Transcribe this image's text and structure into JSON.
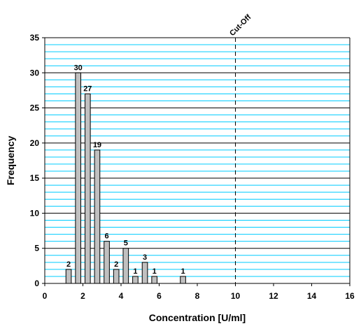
{
  "chart_data": {
    "type": "bar",
    "title": "",
    "xlabel": "Concentration [U/ml]",
    "ylabel": "Frequency",
    "xlim": [
      0,
      16
    ],
    "ylim": [
      0,
      35
    ],
    "x_ticks": [
      0,
      2,
      4,
      6,
      8,
      10,
      12,
      14,
      16
    ],
    "y_ticks": [
      0,
      5,
      10,
      15,
      20,
      25,
      30,
      35
    ],
    "grid": true,
    "minor_grid_step": 1,
    "bar_width": 0.28,
    "bars": [
      {
        "x": 1.25,
        "value": 2
      },
      {
        "x": 1.75,
        "value": 30
      },
      {
        "x": 2.25,
        "value": 27
      },
      {
        "x": 2.75,
        "value": 19
      },
      {
        "x": 3.25,
        "value": 6
      },
      {
        "x": 3.75,
        "value": 2
      },
      {
        "x": 4.25,
        "value": 5
      },
      {
        "x": 4.75,
        "value": 1
      },
      {
        "x": 5.25,
        "value": 3
      },
      {
        "x": 5.75,
        "value": 1
      },
      {
        "x": 7.25,
        "value": 1
      }
    ],
    "cutoff": {
      "x": 10,
      "label": "Cut-Off"
    },
    "colors": {
      "bar_fill": "#c0c0c0",
      "bar_stroke": "#000000",
      "minor_grid": "#00ccff",
      "major_grid": "#000000",
      "plot_bg": "#ffffff"
    }
  }
}
